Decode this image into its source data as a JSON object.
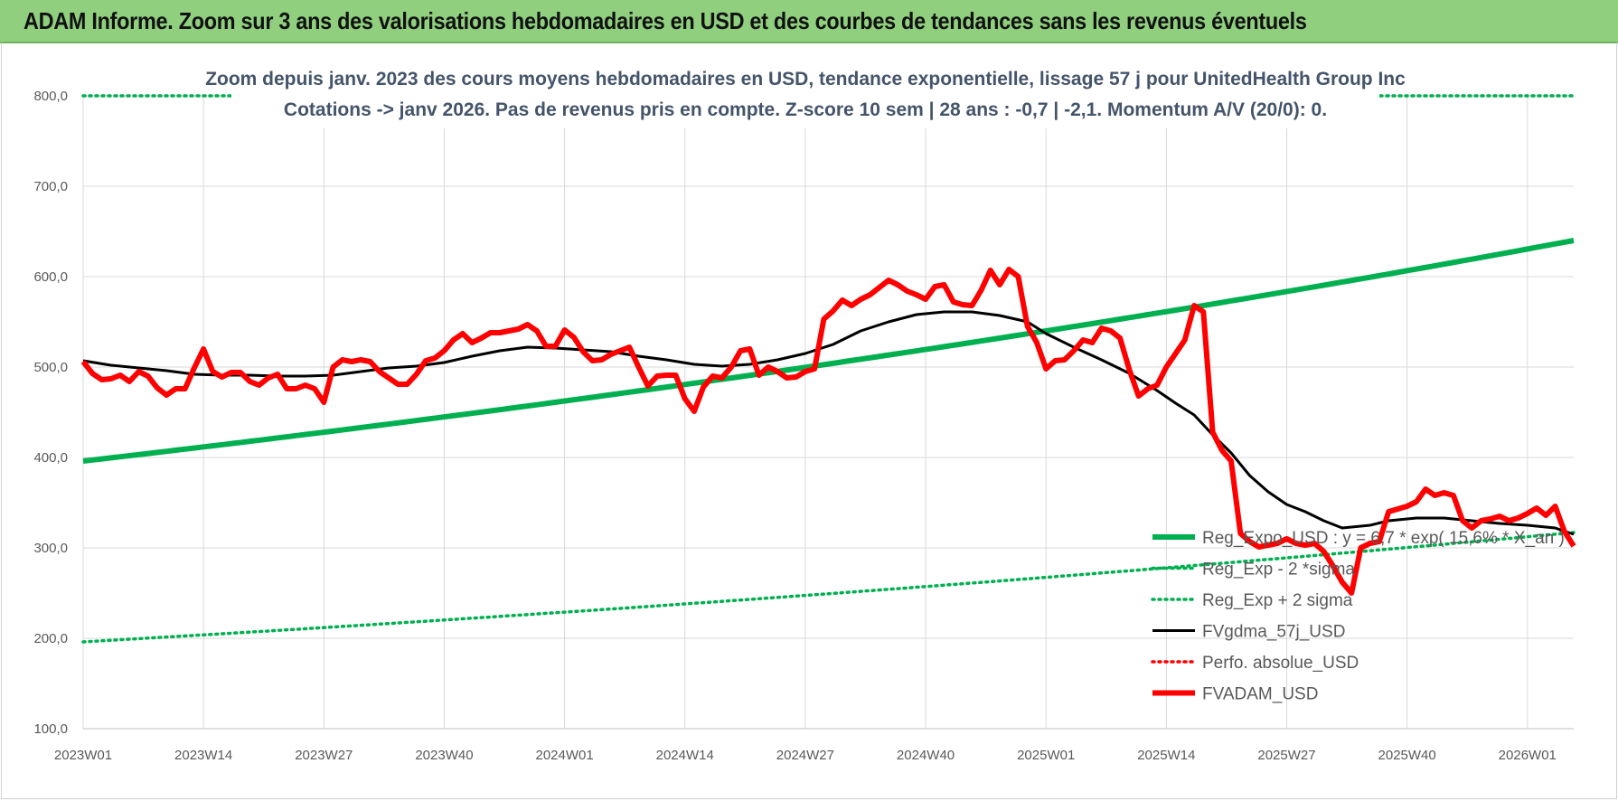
{
  "banner": {
    "title": "ADAM Informe. Zoom sur 3 ans des valorisations hebdomadaires en USD et des courbes de tendances sans les revenus éventuels"
  },
  "chart_data": {
    "type": "line",
    "title_lines": [
      "Zoom depuis janv. 2023 des cours moyens hebdomadaires en USD, tendance exponentielle, lissage 57 j pour UnitedHealth Group Inc",
      "Cotations -> janv 2026. Pas de revenus pris en compte. Z-score 10 sem | 28 ans : -0,7 | -2,1. Momentum A/V (20/0): 0."
    ],
    "ylim": [
      100,
      800
    ],
    "y_ticks": [
      "100,0",
      "200,0",
      "300,0",
      "400,0",
      "500,0",
      "600,0",
      "700,0",
      "800,0"
    ],
    "y_tick_values": [
      100,
      200,
      300,
      400,
      500,
      600,
      700,
      800
    ],
    "x_ticks": [
      "2023W01",
      "2023W14",
      "2023W27",
      "2023W40",
      "2024W01",
      "2024W14",
      "2024W27",
      "2024W40",
      "2025W01",
      "2025W14",
      "2025W27",
      "2025W40",
      "2026W01"
    ],
    "x_tick_weeks": [
      0,
      13,
      26,
      39,
      52,
      65,
      78,
      91,
      104,
      117,
      130,
      143,
      156
    ],
    "x_max_week": 161,
    "grid": true,
    "legend_position": "bottom-right",
    "series": [
      {
        "name": "Reg_Expo_USD : y = 6,7 * exp( 15,6% * X_an )",
        "color": "#00b050",
        "style": "solid-thick",
        "start": 396,
        "end": 640
      },
      {
        "name": "Reg_Exp - 2 *sigma",
        "color": "#00b050",
        "style": "dotted",
        "start": 196,
        "end": 317
      },
      {
        "name": "Reg_Exp + 2 sigma",
        "color": "#00b050",
        "style": "dotted",
        "start": 800,
        "end": 800
      },
      {
        "name": "FVgdma_57j_USD",
        "color": "#000000",
        "style": "solid",
        "points": [
          [
            0,
            507
          ],
          [
            3,
            502
          ],
          [
            6,
            499
          ],
          [
            9,
            496
          ],
          [
            12,
            492
          ],
          [
            15,
            491
          ],
          [
            18,
            491
          ],
          [
            21,
            490
          ],
          [
            24,
            490
          ],
          [
            27,
            491
          ],
          [
            30,
            495
          ],
          [
            33,
            499
          ],
          [
            36,
            501
          ],
          [
            39,
            505
          ],
          [
            42,
            512
          ],
          [
            45,
            518
          ],
          [
            48,
            522
          ],
          [
            51,
            521
          ],
          [
            54,
            519
          ],
          [
            57,
            517
          ],
          [
            60,
            512
          ],
          [
            63,
            508
          ],
          [
            66,
            503
          ],
          [
            69,
            501
          ],
          [
            72,
            503
          ],
          [
            75,
            508
          ],
          [
            78,
            515
          ],
          [
            81,
            525
          ],
          [
            84,
            540
          ],
          [
            87,
            550
          ],
          [
            90,
            558
          ],
          [
            93,
            561
          ],
          [
            96,
            561
          ],
          [
            99,
            557
          ],
          [
            102,
            550
          ],
          [
            104,
            537
          ],
          [
            107,
            522
          ],
          [
            110,
            508
          ],
          [
            113,
            493
          ],
          [
            116,
            474
          ],
          [
            118,
            460
          ],
          [
            120,
            447
          ],
          [
            122,
            425
          ],
          [
            124,
            405
          ],
          [
            126,
            380
          ],
          [
            128,
            362
          ],
          [
            130,
            348
          ],
          [
            132,
            340
          ],
          [
            134,
            330
          ],
          [
            136,
            322
          ],
          [
            139,
            325
          ],
          [
            141,
            330
          ],
          [
            144,
            333
          ],
          [
            147,
            333
          ],
          [
            150,
            330
          ],
          [
            153,
            327
          ],
          [
            156,
            325
          ],
          [
            159,
            322
          ],
          [
            161,
            315
          ]
        ]
      },
      {
        "name": "Perfo. absolue_USD",
        "color": "#ff0000",
        "style": "dotted",
        "points": []
      },
      {
        "name": "FVADAM_USD",
        "color": "#ff0000",
        "style": "solid-thick",
        "points": [
          [
            0,
            506
          ],
          [
            1,
            493
          ],
          [
            2,
            486
          ],
          [
            3,
            487
          ],
          [
            4,
            491
          ],
          [
            5,
            484
          ],
          [
            6,
            495
          ],
          [
            7,
            490
          ],
          [
            8,
            477
          ],
          [
            9,
            469
          ],
          [
            10,
            476
          ],
          [
            11,
            476
          ],
          [
            12,
            499
          ],
          [
            13,
            520
          ],
          [
            14,
            495
          ],
          [
            15,
            489
          ],
          [
            16,
            494
          ],
          [
            17,
            494
          ],
          [
            18,
            484
          ],
          [
            19,
            480
          ],
          [
            20,
            488
          ],
          [
            21,
            492
          ],
          [
            22,
            476
          ],
          [
            23,
            476
          ],
          [
            24,
            480
          ],
          [
            25,
            476
          ],
          [
            26,
            461
          ],
          [
            27,
            500
          ],
          [
            28,
            508
          ],
          [
            29,
            506
          ],
          [
            30,
            508
          ],
          [
            31,
            506
          ],
          [
            32,
            495
          ],
          [
            33,
            488
          ],
          [
            34,
            481
          ],
          [
            35,
            481
          ],
          [
            36,
            492
          ],
          [
            37,
            507
          ],
          [
            38,
            510
          ],
          [
            39,
            518
          ],
          [
            40,
            530
          ],
          [
            41,
            537
          ],
          [
            42,
            527
          ],
          [
            43,
            532
          ],
          [
            44,
            538
          ],
          [
            45,
            538
          ],
          [
            46,
            540
          ],
          [
            47,
            542
          ],
          [
            48,
            547
          ],
          [
            49,
            540
          ],
          [
            50,
            523
          ],
          [
            51,
            523
          ],
          [
            52,
            541
          ],
          [
            53,
            533
          ],
          [
            54,
            517
          ],
          [
            55,
            507
          ],
          [
            56,
            508
          ],
          [
            57,
            514
          ],
          [
            58,
            518
          ],
          [
            59,
            522
          ],
          [
            60,
            500
          ],
          [
            61,
            479
          ],
          [
            62,
            490
          ],
          [
            63,
            491
          ],
          [
            64,
            491
          ],
          [
            65,
            465
          ],
          [
            66,
            451
          ],
          [
            67,
            478
          ],
          [
            68,
            490
          ],
          [
            69,
            488
          ],
          [
            70,
            500
          ],
          [
            71,
            518
          ],
          [
            72,
            520
          ],
          [
            73,
            491
          ],
          [
            74,
            500
          ],
          [
            75,
            495
          ],
          [
            76,
            488
          ],
          [
            77,
            489
          ],
          [
            78,
            495
          ],
          [
            79,
            498
          ],
          [
            80,
            553
          ],
          [
            81,
            562
          ],
          [
            82,
            574
          ],
          [
            83,
            568
          ],
          [
            84,
            575
          ],
          [
            85,
            580
          ],
          [
            86,
            588
          ],
          [
            87,
            596
          ],
          [
            88,
            591
          ],
          [
            89,
            584
          ],
          [
            90,
            580
          ],
          [
            91,
            575
          ],
          [
            92,
            589
          ],
          [
            93,
            591
          ],
          [
            94,
            572
          ],
          [
            95,
            569
          ],
          [
            96,
            568
          ],
          [
            97,
            585
          ],
          [
            98,
            607
          ],
          [
            99,
            591
          ],
          [
            100,
            608
          ],
          [
            101,
            600
          ],
          [
            102,
            545
          ],
          [
            103,
            527
          ],
          [
            104,
            498
          ],
          [
            105,
            507
          ],
          [
            106,
            508
          ],
          [
            107,
            518
          ],
          [
            108,
            530
          ],
          [
            109,
            527
          ],
          [
            110,
            543
          ],
          [
            111,
            540
          ],
          [
            112,
            532
          ],
          [
            113,
            497
          ],
          [
            114,
            468
          ],
          [
            115,
            476
          ],
          [
            116,
            480
          ],
          [
            117,
            500
          ],
          [
            118,
            515
          ],
          [
            119,
            530
          ],
          [
            120,
            568
          ],
          [
            121,
            561
          ],
          [
            122,
            428
          ],
          [
            123,
            408
          ],
          [
            124,
            396
          ],
          [
            125,
            316
          ],
          [
            126,
            307
          ],
          [
            127,
            301
          ],
          [
            128,
            303
          ],
          [
            129,
            305
          ],
          [
            130,
            310
          ],
          [
            131,
            305
          ],
          [
            132,
            303
          ],
          [
            133,
            305
          ],
          [
            134,
            296
          ],
          [
            135,
            280
          ],
          [
            136,
            262
          ],
          [
            137,
            250
          ],
          [
            138,
            300
          ],
          [
            139,
            305
          ],
          [
            140,
            307
          ],
          [
            141,
            340
          ],
          [
            142,
            343
          ],
          [
            143,
            346
          ],
          [
            144,
            351
          ],
          [
            145,
            365
          ],
          [
            146,
            358
          ],
          [
            147,
            361
          ],
          [
            148,
            358
          ],
          [
            149,
            330
          ],
          [
            150,
            322
          ],
          [
            151,
            330
          ],
          [
            152,
            332
          ],
          [
            153,
            335
          ],
          [
            154,
            330
          ],
          [
            155,
            333
          ],
          [
            156,
            338
          ],
          [
            157,
            344
          ],
          [
            158,
            336
          ],
          [
            159,
            346
          ],
          [
            160,
            318
          ],
          [
            161,
            302
          ]
        ]
      }
    ]
  }
}
